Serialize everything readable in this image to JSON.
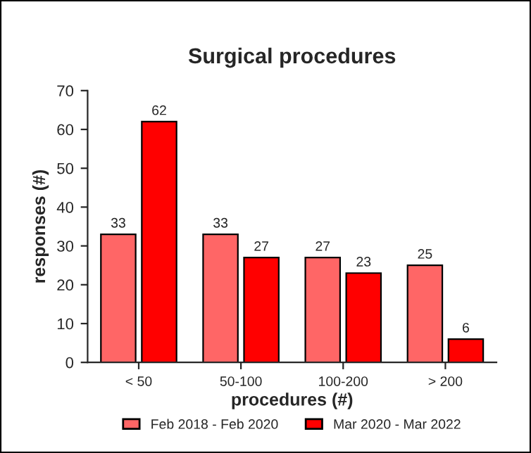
{
  "chart_data": {
    "type": "bar",
    "title": "Surgical procedures",
    "xlabel": "procedures (#)",
    "ylabel": "responses (#)",
    "categories": [
      "< 50",
      "50-100",
      "100-200",
      "> 200"
    ],
    "series": [
      {
        "name": "Feb 2018 - Feb 2020",
        "color": "#ff6666",
        "values": [
          33,
          33,
          27,
          25
        ]
      },
      {
        "name": "Mar 2020 - Mar 2022",
        "color": "#ff0000",
        "values": [
          62,
          27,
          23,
          6
        ]
      }
    ],
    "ylim": [
      0,
      70
    ],
    "yticks": [
      0,
      10,
      20,
      30,
      40,
      50,
      60,
      70
    ],
    "grid": false,
    "legend": "bottom",
    "data_labels": true
  }
}
